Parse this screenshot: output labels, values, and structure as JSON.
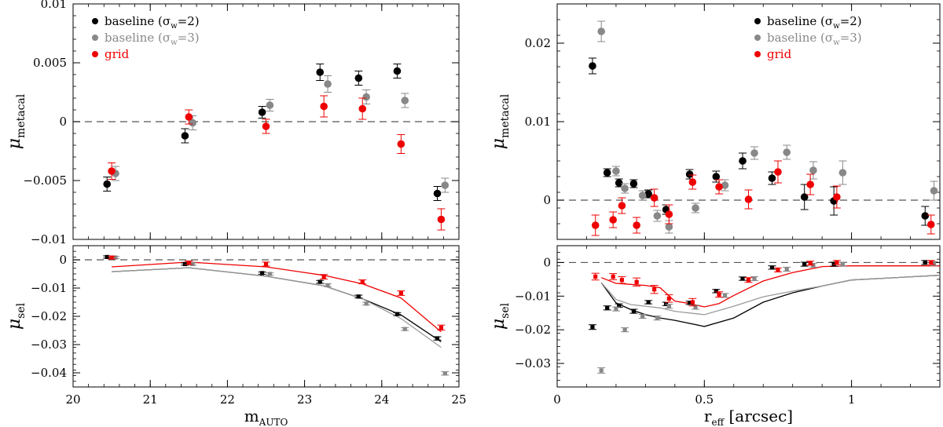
{
  "colors": {
    "black": "#000000",
    "gray": "#888888",
    "red": "#ee0000",
    "lightgray": "#9a9a9a"
  },
  "chart_data": [
    {
      "type": "scatter",
      "id": "left-top",
      "ylabel": "μ",
      "ylabel_sub": "metacal",
      "xlim": [
        20,
        25
      ],
      "ylim": [
        -0.01,
        0.01
      ],
      "yticks": [
        -0.01,
        -0.005,
        0,
        0.005,
        0.01
      ],
      "ytick_labels": [
        "−0.01",
        "−0.005",
        "0",
        "0.005",
        "0.01"
      ],
      "reference_line": 0,
      "legend": [
        {
          "label": "baseline (σ",
          "sub": "w",
          "tail": "=2)",
          "color": "#000000"
        },
        {
          "label": "baseline (σ",
          "sub": "w",
          "tail": "=3)",
          "color": "#888888"
        },
        {
          "label": "grid",
          "sub": "",
          "tail": "",
          "color": "#ee0000"
        }
      ],
      "series": [
        {
          "color": "#000000",
          "points": [
            [
              20.44,
              -0.0053,
              0.0006
            ],
            [
              21.45,
              -0.0012,
              0.0006
            ],
            [
              22.45,
              0.0008,
              0.0005
            ],
            [
              23.2,
              0.0042,
              0.0007
            ],
            [
              23.7,
              0.0037,
              0.0006
            ],
            [
              24.2,
              0.0043,
              0.0006
            ],
            [
              24.72,
              -0.0061,
              0.0006
            ]
          ]
        },
        {
          "color": "#888888",
          "points": [
            [
              20.55,
              -0.0044,
              0.0006
            ],
            [
              21.55,
              -0.0001,
              0.0006
            ],
            [
              22.55,
              0.0014,
              0.0005
            ],
            [
              23.3,
              0.0032,
              0.0007
            ],
            [
              23.8,
              0.0021,
              0.0006
            ],
            [
              24.3,
              0.0018,
              0.0006
            ],
            [
              24.82,
              -0.0054,
              0.0006
            ]
          ]
        },
        {
          "color": "#ee0000",
          "points": [
            [
              20.5,
              -0.0042,
              0.0007
            ],
            [
              21.5,
              0.0004,
              0.0006
            ],
            [
              22.5,
              -0.0004,
              0.0006
            ],
            [
              23.25,
              0.0013,
              0.0009
            ],
            [
              23.75,
              0.0011,
              0.0009
            ],
            [
              24.25,
              -0.0019,
              0.0008
            ],
            [
              24.77,
              -0.0083,
              0.0009
            ]
          ]
        }
      ]
    },
    {
      "type": "scatter",
      "id": "left-bottom",
      "xlabel": "m",
      "xlabel_sub": "AUTO",
      "ylabel": "μ",
      "ylabel_sub": "sel",
      "xlim": [
        20,
        25
      ],
      "ylim": [
        -0.045,
        0.005
      ],
      "xticks": [
        20,
        21,
        22,
        23,
        24,
        25
      ],
      "xtick_labels": [
        "20",
        "21",
        "22",
        "23",
        "24",
        "25"
      ],
      "yticks": [
        -0.04,
        -0.03,
        -0.02,
        -0.01,
        0
      ],
      "ytick_labels": [
        "−0.04",
        "−0.03",
        "−0.02",
        "−0.01",
        "0"
      ],
      "reference_line": 0,
      "series": [
        {
          "color": "#000000",
          "points": [
            [
              20.44,
              0.001,
              0.0004
            ],
            [
              21.45,
              -0.0015,
              0.0004
            ],
            [
              22.45,
              -0.0047,
              0.0004
            ],
            [
              23.2,
              -0.0078,
              0.0005
            ],
            [
              23.7,
              -0.013,
              0.0005
            ],
            [
              24.2,
              -0.0192,
              0.0005
            ],
            [
              24.72,
              -0.0278,
              0.0006
            ]
          ]
        },
        {
          "color": "#888888",
          "points": [
            [
              20.55,
              0.0008,
              0.0004
            ],
            [
              21.55,
              -0.0015,
              0.0004
            ],
            [
              22.55,
              -0.005,
              0.0004
            ],
            [
              23.3,
              -0.009,
              0.0005
            ],
            [
              23.8,
              -0.0155,
              0.0005
            ],
            [
              24.3,
              -0.0245,
              0.0005
            ],
            [
              24.82,
              -0.0402,
              0.0006
            ]
          ]
        },
        {
          "color": "#ee0000",
          "points": [
            [
              20.5,
              0.0008,
              0.0005
            ],
            [
              21.5,
              -0.001,
              0.0006
            ],
            [
              22.5,
              -0.0015,
              0.0007
            ],
            [
              23.25,
              -0.006,
              0.0008
            ],
            [
              23.75,
              -0.0078,
              0.0007
            ],
            [
              24.25,
              -0.0118,
              0.0008
            ],
            [
              24.77,
              -0.024,
              0.0009
            ]
          ]
        }
      ],
      "curves": [
        {
          "color": "#000000",
          "x": [
            20.5,
            21.5,
            22.5,
            23.25,
            23.75,
            24.25,
            24.77
          ],
          "y": [
            -0.0042,
            -0.0028,
            -0.0058,
            -0.0092,
            -0.0138,
            -0.0195,
            -0.029
          ]
        },
        {
          "color": "#9a9a9a",
          "x": [
            20.5,
            21.5,
            22.5,
            23.25,
            23.75,
            24.25,
            24.77
          ],
          "y": [
            -0.0042,
            -0.0028,
            -0.0058,
            -0.0092,
            -0.0138,
            -0.0208,
            -0.031
          ]
        },
        {
          "color": "#ee0000",
          "x": [
            20.5,
            21.5,
            22.5,
            23.25,
            23.75,
            24.25,
            24.77
          ],
          "y": [
            -0.0025,
            -0.0008,
            -0.0025,
            -0.0055,
            -0.0085,
            -0.0135,
            -0.0255
          ]
        }
      ]
    },
    {
      "type": "scatter",
      "id": "right-top",
      "ylabel": "μ",
      "ylabel_sub": "metacal",
      "xlim": [
        0,
        1.3
      ],
      "ylim": [
        -0.005,
        0.025
      ],
      "yticks": [
        0,
        0.01,
        0.02
      ],
      "ytick_labels": [
        "0",
        "0.01",
        "0.02"
      ],
      "reference_line": 0,
      "legend": [
        {
          "label": "baseline (σ",
          "sub": "w",
          "tail": "=2)",
          "color": "#000000"
        },
        {
          "label": "baseline (σ",
          "sub": "w",
          "tail": "=3)",
          "color": "#888888"
        },
        {
          "label": "grid",
          "sub": "",
          "tail": "",
          "color": "#ee0000"
        }
      ],
      "series": [
        {
          "color": "#000000",
          "points": [
            [
              0.12,
              0.0171,
              0.001
            ],
            [
              0.17,
              0.0035,
              0.0005
            ],
            [
              0.21,
              0.0022,
              0.0005
            ],
            [
              0.26,
              0.0021,
              0.0005
            ],
            [
              0.31,
              0.0008,
              0.0005
            ],
            [
              0.37,
              -0.0012,
              0.0006
            ],
            [
              0.45,
              0.0033,
              0.0006
            ],
            [
              0.54,
              0.003,
              0.0007
            ],
            [
              0.63,
              0.005,
              0.001
            ],
            [
              0.73,
              0.0028,
              0.0008
            ],
            [
              0.84,
              0.0004,
              0.0016
            ],
            [
              0.94,
              -0.0001,
              0.0018
            ],
            [
              1.25,
              -0.002,
              0.0012
            ]
          ]
        },
        {
          "color": "#888888",
          "points": [
            [
              0.15,
              0.0215,
              0.0013
            ],
            [
              0.2,
              0.0037,
              0.0006
            ],
            [
              0.23,
              0.0015,
              0.0006
            ],
            [
              0.29,
              0.0006,
              0.0006
            ],
            [
              0.34,
              -0.002,
              0.0007
            ],
            [
              0.38,
              -0.0034,
              0.0008
            ],
            [
              0.47,
              -0.001,
              0.0006
            ],
            [
              0.57,
              0.0019,
              0.0007
            ],
            [
              0.67,
              0.006,
              0.0008
            ],
            [
              0.78,
              0.0061,
              0.0009
            ],
            [
              0.87,
              0.0038,
              0.0011
            ],
            [
              0.97,
              0.0035,
              0.0015
            ],
            [
              1.28,
              0.0012,
              0.0012
            ]
          ]
        },
        {
          "color": "#ee0000",
          "points": [
            [
              0.13,
              -0.0032,
              0.0013
            ],
            [
              0.19,
              -0.0025,
              0.001
            ],
            [
              0.22,
              -0.0007,
              0.001
            ],
            [
              0.27,
              -0.0032,
              0.001
            ],
            [
              0.33,
              0.0003,
              0.0011
            ],
            [
              0.38,
              -0.0018,
              0.0012
            ],
            [
              0.46,
              0.0023,
              0.0009
            ],
            [
              0.55,
              0.0017,
              0.0009
            ],
            [
              0.65,
              0.0001,
              0.0012
            ],
            [
              0.75,
              0.0036,
              0.0014
            ],
            [
              0.86,
              0.002,
              0.0013
            ],
            [
              0.95,
              0.0004,
              0.0014
            ],
            [
              1.27,
              -0.0031,
              0.0012
            ]
          ]
        }
      ]
    },
    {
      "type": "scatter",
      "id": "right-bottom",
      "xlabel": "r",
      "xlabel_sub": "eff",
      "xlabel_tail": " [arcsec]",
      "ylabel": "μ",
      "ylabel_sub": "sel",
      "xlim": [
        0,
        1.3
      ],
      "ylim": [
        -0.037,
        0.005
      ],
      "xticks": [
        0,
        0.5,
        1
      ],
      "xtick_labels": [
        "0",
        "0.5",
        "1"
      ],
      "yticks": [
        -0.03,
        -0.02,
        -0.01,
        0
      ],
      "ytick_labels": [
        "−0.03",
        "−0.02",
        "−0.01",
        "0"
      ],
      "reference_line": 0,
      "series": [
        {
          "color": "#000000",
          "points": [
            [
              0.12,
              -0.0192,
              0.0007
            ],
            [
              0.17,
              -0.0135,
              0.0006
            ],
            [
              0.21,
              -0.0128,
              0.0005
            ],
            [
              0.26,
              -0.0145,
              0.0006
            ],
            [
              0.31,
              -0.0118,
              0.0005
            ],
            [
              0.37,
              -0.0123,
              0.0005
            ],
            [
              0.45,
              -0.012,
              0.0005
            ],
            [
              0.54,
              -0.0085,
              0.0005
            ],
            [
              0.63,
              -0.0048,
              0.0005
            ],
            [
              0.73,
              -0.0015,
              0.0005
            ],
            [
              0.84,
              -0.0005,
              0.0006
            ],
            [
              0.94,
              -0.0005,
              0.0006
            ],
            [
              1.25,
              0.0,
              0.0006
            ]
          ]
        },
        {
          "color": "#888888",
          "points": [
            [
              0.15,
              -0.0321,
              0.0008
            ],
            [
              0.2,
              -0.0138,
              0.0006
            ],
            [
              0.23,
              -0.02,
              0.0006
            ],
            [
              0.29,
              -0.016,
              0.0006
            ],
            [
              0.34,
              -0.0165,
              0.0006
            ],
            [
              0.38,
              -0.013,
              0.0006
            ],
            [
              0.47,
              -0.0133,
              0.0006
            ],
            [
              0.57,
              -0.0098,
              0.0006
            ],
            [
              0.67,
              -0.0048,
              0.0006
            ],
            [
              0.78,
              -0.002,
              0.0006
            ],
            [
              0.87,
              -0.0008,
              0.0006
            ],
            [
              0.97,
              -0.0005,
              0.0006
            ],
            [
              1.28,
              -0.0003,
              0.0006
            ]
          ]
        },
        {
          "color": "#ee0000",
          "points": [
            [
              0.13,
              -0.0042,
              0.001
            ],
            [
              0.19,
              -0.0042,
              0.0009
            ],
            [
              0.22,
              -0.0052,
              0.001
            ],
            [
              0.27,
              -0.0058,
              0.0012
            ],
            [
              0.33,
              -0.008,
              0.0012
            ],
            [
              0.38,
              -0.0107,
              0.0011
            ],
            [
              0.46,
              -0.0118,
              0.0011
            ],
            [
              0.55,
              -0.0095,
              0.0008
            ],
            [
              0.65,
              -0.0052,
              0.0007
            ],
            [
              0.75,
              -0.0022,
              0.0006
            ],
            [
              0.86,
              -0.0002,
              0.0006
            ],
            [
              0.95,
              0.0,
              0.0006
            ],
            [
              1.27,
              0.0,
              0.0006
            ]
          ]
        }
      ],
      "curves": [
        {
          "color": "#000000",
          "x": [
            0.15,
            0.2,
            0.25,
            0.3,
            0.35,
            0.4,
            0.5,
            0.6,
            0.7,
            0.8,
            0.9,
            1.0,
            1.3
          ],
          "y": [
            -0.006,
            -0.012,
            -0.014,
            -0.0155,
            -0.0165,
            -0.0172,
            -0.019,
            -0.0165,
            -0.0118,
            -0.009,
            -0.007,
            -0.0052,
            -0.0038
          ]
        },
        {
          "color": "#9a9a9a",
          "x": [
            0.15,
            0.2,
            0.25,
            0.3,
            0.35,
            0.4,
            0.5,
            0.6,
            0.7,
            0.8,
            0.9,
            1.0,
            1.3
          ],
          "y": [
            -0.006,
            -0.011,
            -0.0125,
            -0.013,
            -0.0135,
            -0.0145,
            -0.0155,
            -0.013,
            -0.0102,
            -0.0085,
            -0.007,
            -0.0052,
            -0.0038
          ]
        },
        {
          "color": "#ee0000",
          "x": [
            0.15,
            0.2,
            0.25,
            0.3,
            0.35,
            0.4,
            0.45,
            0.5,
            0.55,
            0.6,
            0.7,
            0.8,
            0.9,
            1.0,
            1.3
          ],
          "y": [
            -0.0045,
            -0.0062,
            -0.0065,
            -0.0068,
            -0.0075,
            -0.0115,
            -0.0122,
            -0.0132,
            -0.0122,
            -0.0098,
            -0.0055,
            -0.003,
            -0.0012,
            -0.001,
            -0.001
          ]
        }
      ]
    }
  ]
}
